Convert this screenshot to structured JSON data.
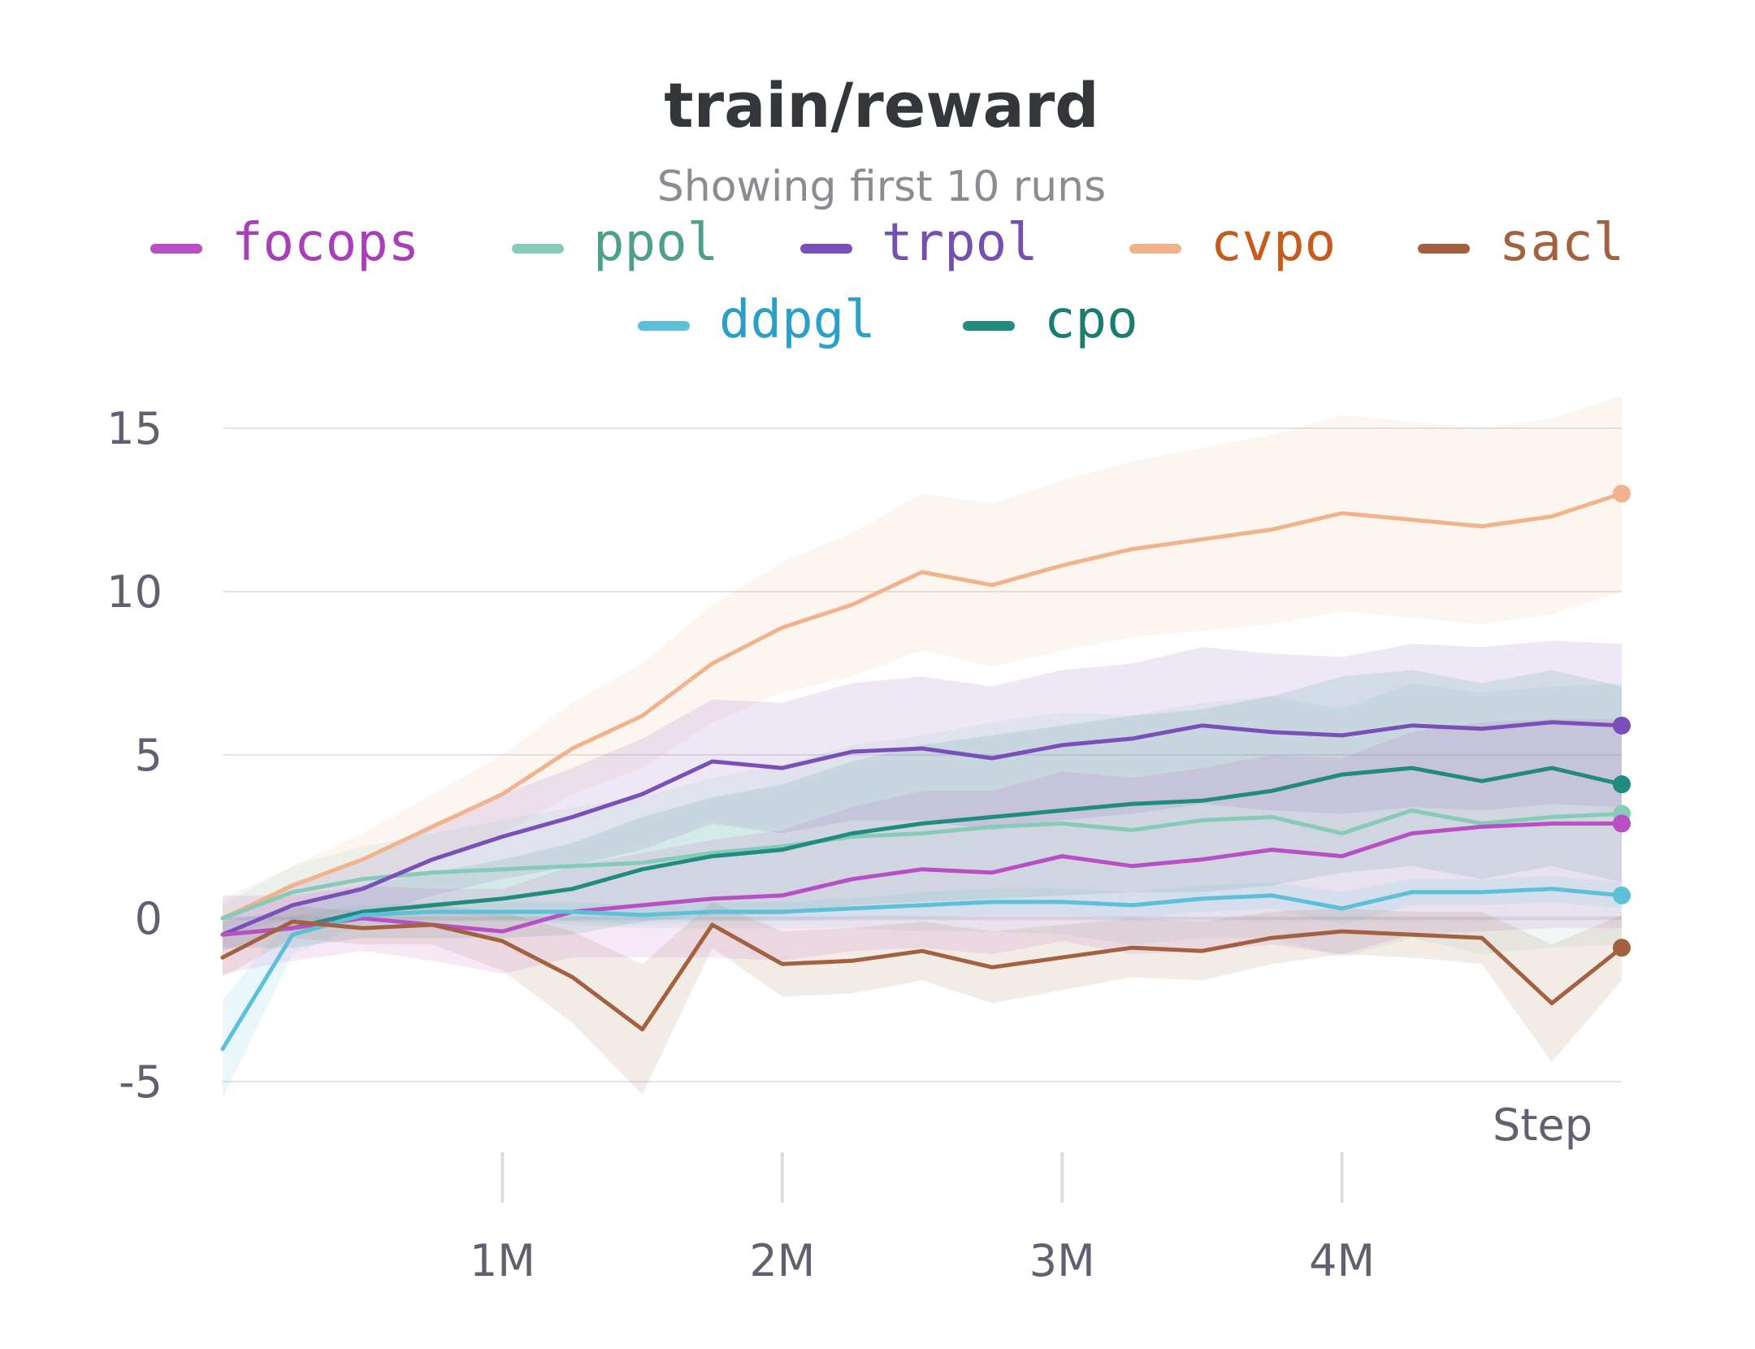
{
  "chart_data": {
    "type": "line",
    "title": "train/reward",
    "subtitle": "Showing first 10 runs",
    "xlabel": "Step",
    "ylabel": "",
    "xlim": [
      0,
      5000000
    ],
    "ylim": [
      -6.5,
      16
    ],
    "x_ticks": [
      {
        "value": 1000000,
        "label": "1M"
      },
      {
        "value": 2000000,
        "label": "2M"
      },
      {
        "value": 3000000,
        "label": "3M"
      },
      {
        "value": 4000000,
        "label": "4M"
      }
    ],
    "y_ticks": [
      {
        "value": 15,
        "label": "15"
      },
      {
        "value": 10,
        "label": "10"
      },
      {
        "value": 5,
        "label": "5"
      },
      {
        "value": 0,
        "label": "0"
      },
      {
        "value": -5,
        "label": "-5"
      }
    ],
    "grid": true,
    "legend_placement": "top",
    "x": [
      0,
      250000,
      500000,
      750000,
      1000000,
      1250000,
      1500000,
      1750000,
      2000000,
      2250000,
      2500000,
      2750000,
      3000000,
      3250000,
      3500000,
      3750000,
      4000000,
      4250000,
      4500000,
      4750000,
      5000000
    ],
    "series": [
      {
        "name": "focops",
        "color": "#b84fc4",
        "text_color": "#a93fb8",
        "values": [
          -0.5,
          -0.3,
          0.0,
          -0.2,
          -0.4,
          0.2,
          0.4,
          0.6,
          0.7,
          1.2,
          1.5,
          1.4,
          1.9,
          1.6,
          1.8,
          2.1,
          1.9,
          2.6,
          2.8,
          2.9,
          2.9
        ],
        "band": [
          1.2,
          1.0,
          1.0,
          1.1,
          1.3,
          1.4,
          1.6,
          1.8,
          2.0,
          2.2,
          2.4,
          2.5,
          2.6,
          2.7,
          2.8,
          2.9,
          3.0,
          3.1,
          3.2,
          3.2,
          3.2
        ]
      },
      {
        "name": "ppol",
        "color": "#86cbb7",
        "text_color": "#4ea08c",
        "values": [
          0.0,
          0.8,
          1.2,
          1.4,
          1.5,
          1.6,
          1.7,
          2.0,
          2.2,
          2.5,
          2.6,
          2.8,
          2.9,
          2.7,
          3.0,
          3.1,
          2.6,
          3.3,
          2.9,
          3.1,
          3.2
        ],
        "band": [
          0.6,
          0.8,
          1.0,
          1.2,
          1.5,
          1.8,
          2.0,
          2.3,
          2.5,
          2.8,
          3.0,
          3.2,
          3.4,
          3.5,
          3.6,
          3.7,
          3.8,
          3.9,
          4.0,
          4.0,
          4.0
        ]
      },
      {
        "name": "trpol",
        "color": "#7a4fba",
        "text_color": "#7550b0",
        "values": [
          -0.5,
          0.4,
          0.9,
          1.8,
          2.5,
          3.1,
          3.8,
          4.8,
          4.6,
          5.1,
          5.2,
          4.9,
          5.3,
          5.5,
          5.9,
          5.7,
          5.6,
          5.9,
          5.8,
          6.0,
          5.9
        ],
        "band": [
          0.5,
          0.7,
          0.9,
          1.1,
          1.3,
          1.5,
          1.7,
          1.9,
          2.0,
          2.1,
          2.2,
          2.2,
          2.3,
          2.3,
          2.4,
          2.4,
          2.4,
          2.5,
          2.5,
          2.5,
          2.5
        ]
      },
      {
        "name": "cvpo",
        "color": "#f0b38c",
        "text_color": "#c75b1e",
        "values": [
          0.0,
          1.0,
          1.8,
          2.8,
          3.8,
          5.2,
          6.2,
          7.8,
          8.9,
          9.6,
          10.6,
          10.2,
          10.8,
          11.3,
          11.6,
          11.9,
          12.4,
          12.2,
          12.0,
          12.3,
          13.0
        ],
        "band": [
          0.4,
          0.6,
          0.8,
          1.0,
          1.2,
          1.4,
          1.6,
          1.8,
          2.0,
          2.2,
          2.4,
          2.5,
          2.6,
          2.7,
          2.8,
          2.9,
          3.0,
          3.0,
          3.0,
          3.0,
          3.0
        ]
      },
      {
        "name": "sacl",
        "color": "#a3613f",
        "text_color": "#a3613f",
        "values": [
          -1.2,
          -0.1,
          -0.3,
          -0.2,
          -0.7,
          -1.8,
          -3.4,
          -0.2,
          -1.4,
          -1.3,
          -1.0,
          -1.5,
          -1.2,
          -0.9,
          -1.0,
          -0.6,
          -0.4,
          -0.5,
          -0.6,
          -2.6,
          -0.9
        ],
        "band": [
          0.6,
          0.5,
          0.5,
          0.6,
          0.9,
          1.4,
          2.0,
          0.7,
          1.0,
          1.0,
          0.9,
          1.1,
          1.0,
          0.9,
          0.9,
          0.8,
          0.7,
          0.7,
          0.8,
          1.8,
          1.0
        ]
      },
      {
        "name": "ddpgl",
        "color": "#5bc0d8",
        "text_color": "#2a9fc8",
        "values": [
          -4.0,
          -0.5,
          0.1,
          0.2,
          0.2,
          0.2,
          0.1,
          0.2,
          0.2,
          0.3,
          0.4,
          0.5,
          0.5,
          0.4,
          0.6,
          0.7,
          0.3,
          0.8,
          0.8,
          0.9,
          0.7
        ],
        "band": [
          1.5,
          0.6,
          0.3,
          0.3,
          0.3,
          0.3,
          0.3,
          0.3,
          0.3,
          0.3,
          0.4,
          0.4,
          0.4,
          0.4,
          0.4,
          0.4,
          0.5,
          0.4,
          0.4,
          0.4,
          0.4
        ]
      },
      {
        "name": "cpo",
        "color": "#1f8c7d",
        "text_color": "#1a7d70",
        "values": [
          -0.5,
          -0.3,
          0.2,
          0.4,
          0.6,
          0.9,
          1.5,
          1.9,
          2.1,
          2.6,
          2.9,
          3.1,
          3.3,
          3.5,
          3.6,
          3.9,
          4.4,
          4.6,
          4.2,
          4.6,
          4.1
        ],
        "band": [
          0.4,
          0.6,
          0.8,
          1.0,
          1.2,
          1.4,
          1.6,
          1.8,
          2.0,
          2.2,
          2.4,
          2.5,
          2.6,
          2.7,
          2.8,
          2.9,
          3.0,
          3.0,
          3.0,
          3.0,
          3.0
        ]
      }
    ]
  }
}
